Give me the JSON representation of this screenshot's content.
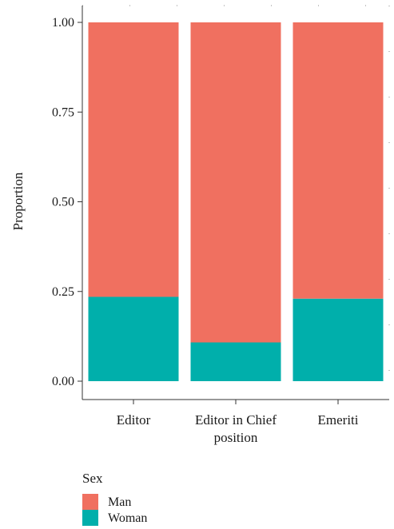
{
  "chart_data": {
    "type": "bar",
    "stacked": true,
    "categories": [
      [
        "Editor"
      ],
      [
        "Editor in Chief",
        "position"
      ],
      [
        "Emeriti"
      ]
    ],
    "series": [
      {
        "name": "Woman",
        "color": "#00AFAB",
        "values": [
          0.235,
          0.108,
          0.23
        ]
      },
      {
        "name": "Man",
        "color": "#F07060",
        "values": [
          0.765,
          0.892,
          0.77
        ]
      }
    ],
    "xlabel": "",
    "ylabel": "Proportion",
    "ylim": [
      0,
      1
    ],
    "yticks": [
      "0.00",
      "0.25",
      "0.50",
      "0.75",
      "1.00"
    ],
    "grid": false,
    "legend": {
      "title": "Sex",
      "placement": "bottom-left",
      "items": [
        {
          "label": "Man",
          "color": "#F07060"
        },
        {
          "label": "Woman",
          "color": "#00AFAB"
        }
      ]
    }
  }
}
